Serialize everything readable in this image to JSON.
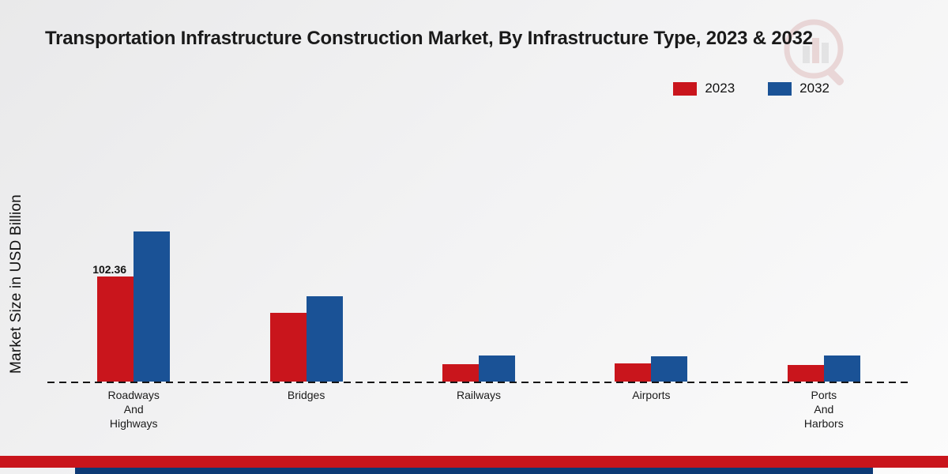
{
  "page": {
    "title": "Transportation Infrastructure Construction Market, By Infrastructure Type, 2023 & 2032",
    "ylabel": "Market Size in USD Billion"
  },
  "legend": {
    "position": "top-right",
    "items": [
      {
        "label": "2023",
        "color": "#c9151c"
      },
      {
        "label": "2032",
        "color": "#1a5296"
      }
    ]
  },
  "chart_data": {
    "type": "bar",
    "title": "Transportation Infrastructure Construction Market, By Infrastructure Type, 2023 & 2032",
    "xlabel": "",
    "ylabel": "Market Size in USD Billion",
    "categories": [
      "Roadways And Highways",
      "Bridges",
      "Railways",
      "Airports",
      "Ports And Harbors"
    ],
    "category_lines": [
      [
        "Roadways",
        "And",
        "Highways"
      ],
      [
        "Bridges"
      ],
      [
        "Railways"
      ],
      [
        "Airports"
      ],
      [
        "Ports",
        "And",
        "Harbors"
      ]
    ],
    "series": [
      {
        "name": "2023",
        "color": "#c9151c",
        "values": [
          102.36,
          67,
          17,
          17.5,
          16.5
        ]
      },
      {
        "name": "2032",
        "color": "#1a5296",
        "values": [
          146,
          83,
          25.5,
          24.5,
          25
        ]
      }
    ],
    "value_labels": [
      {
        "series": "2023",
        "category": "Roadways And Highways",
        "text": "102.36"
      }
    ],
    "ylim": [
      0,
      225
    ],
    "grid": false,
    "baseline_style": "dashed",
    "legend_position": "top-right"
  },
  "footer": {
    "red_color": "#c9151c",
    "blue_color": "#0d3a75"
  },
  "watermark": {
    "icon": "bar-chart-magnifier-logo",
    "color": "#b03a3a"
  }
}
